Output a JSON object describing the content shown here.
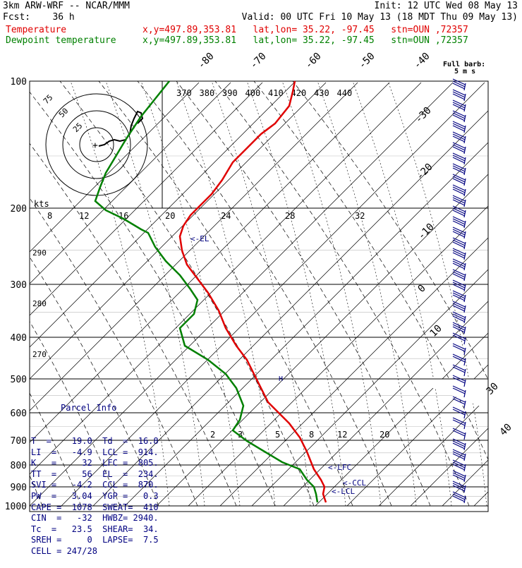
{
  "header": {
    "line1_left": "3km ARW-WRF -- NCAR/MMM",
    "line1_right": "Init: 12 UTC Wed 08 May 13",
    "line2_left": "Fcst:    36 h",
    "line2_right": "Valid: 00 UTC Fri 10 May 13 (18 MDT Thu 09 May 13)",
    "temp_label": "Temperature",
    "temp_info": "x,y=497.89,353.81   lat,lon= 35.22, -97.45   stn=OUN ,72357",
    "dew_label": "Dewpoint temperature",
    "dew_info": "x,y=497.89,353.81   lat,lon= 35.22, -97.45   stn=OUN ,72357"
  },
  "barb_label_1": "Full barb:",
  "barb_label_2": "5 m s",
  "hodograph": {
    "kts_label": "kts",
    "ring_labels": [
      "25",
      "50",
      "75"
    ]
  },
  "parcel_info": {
    "title": "Parcel Info",
    "rows": [
      "T  =    19.0  Td  =  16.8",
      "LI  =   -4.9  LCL =  914.",
      "K   =     32  LFC =  805.",
      "TT  =     56  EL  =  234.",
      "SVI =   -4.2  CCL =  870.",
      "PW  =   3.04  YGP =   0.3",
      "CAPE =  1078  SWEAT=  410",
      "CIN  =   -32  HWBZ= 2940.",
      "Tc  =   23.5  SHEAR=  34.",
      "SREH =     0  LAPSE=  7.5",
      "CELL = 247/28"
    ]
  },
  "level_labels": {
    "el": "<-EL",
    "lfc": "<-LFC",
    "ccl": "<-CCL",
    "lcl": "<-LCL",
    "top_h": "H"
  },
  "colors": {
    "temperature": "#e00000",
    "dewpoint": "#008000",
    "wind": "#000080",
    "grid": "#000000"
  },
  "chart_data": {
    "type": "line",
    "xlabel": "",
    "ylabel": "",
    "pressure_levels": [
      "100",
      "200",
      "300",
      "400",
      "500",
      "600",
      "700",
      "800",
      "900",
      "1000"
    ],
    "isotherm_labels": [
      "-80",
      "-70",
      "-60",
      "-50",
      "-40",
      "-30",
      "-20",
      "-10",
      "0",
      "10",
      "30",
      "40"
    ],
    "theta_labels": [
      "370",
      "380",
      "390",
      "400",
      "410",
      "420",
      "430",
      "440"
    ],
    "mixing_ratio_labels_upper": [
      "8",
      "12",
      "16",
      "20",
      "24",
      "28",
      "32"
    ],
    "mixing_ratio_labels_lower": [
      "2",
      "3",
      "5",
      "8",
      "12",
      "20"
    ],
    "theta_labels_left": [
      "290",
      "280",
      "270"
    ],
    "series": [
      {
        "name": "Temperature",
        "color": "#e00000",
        "points": [
          [
            418,
            115
          ],
          [
            415,
            130
          ],
          [
            410,
            150
          ],
          [
            390,
            175
          ],
          [
            370,
            190
          ],
          [
            350,
            210
          ],
          [
            330,
            230
          ],
          [
            315,
            255
          ],
          [
            300,
            275
          ],
          [
            285,
            290
          ],
          [
            270,
            305
          ],
          [
            260,
            320
          ],
          [
            255,
            335
          ],
          [
            258,
            355
          ],
          [
            265,
            375
          ],
          [
            280,
            395
          ],
          [
            295,
            415
          ],
          [
            310,
            440
          ],
          [
            320,
            465
          ],
          [
            335,
            490
          ],
          [
            350,
            510
          ],
          [
            360,
            530
          ],
          [
            370,
            550
          ],
          [
            380,
            570
          ],
          [
            395,
            585
          ],
          [
            410,
            600
          ],
          [
            425,
            620
          ],
          [
            435,
            640
          ],
          [
            445,
            665
          ],
          [
            455,
            680
          ],
          [
            460,
            690
          ],
          [
            458,
            700
          ],
          [
            462,
            712
          ]
        ]
      },
      {
        "name": "Dewpoint temperature",
        "color": "#008000",
        "points": [
          [
            240,
            115
          ],
          [
            220,
            140
          ],
          [
            200,
            165
          ],
          [
            180,
            195
          ],
          [
            165,
            220
          ],
          [
            150,
            245
          ],
          [
            142,
            265
          ],
          [
            135,
            285
          ],
          [
            150,
            298
          ],
          [
            175,
            310
          ],
          [
            200,
            325
          ],
          [
            210,
            330
          ],
          [
            220,
            350
          ],
          [
            235,
            370
          ],
          [
            255,
            390
          ],
          [
            270,
            410
          ],
          [
            280,
            425
          ],
          [
            275,
            445
          ],
          [
            255,
            465
          ],
          [
            262,
            490
          ],
          [
            295,
            510
          ],
          [
            320,
            530
          ],
          [
            335,
            550
          ],
          [
            345,
            575
          ],
          [
            340,
            595
          ],
          [
            330,
            610
          ],
          [
            350,
            625
          ],
          [
            375,
            640
          ],
          [
            400,
            655
          ],
          [
            425,
            665
          ],
          [
            435,
            680
          ],
          [
            445,
            690
          ],
          [
            448,
            700
          ],
          [
            450,
            712
          ]
        ]
      }
    ]
  }
}
